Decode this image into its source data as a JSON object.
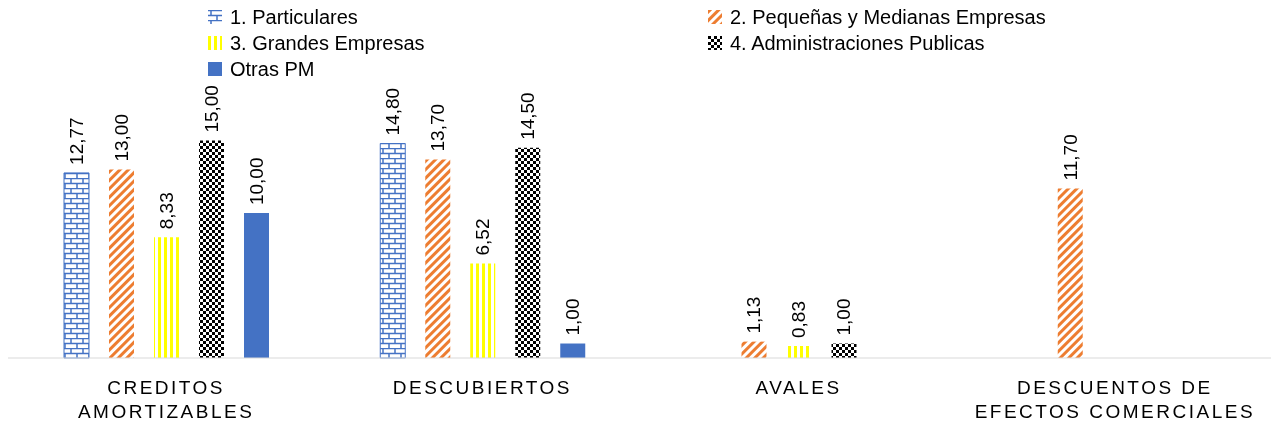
{
  "chart_data": {
    "type": "bar",
    "categories": [
      "CREDITOS AMORTIZABLES",
      "DESCUBIERTOS",
      "AVALES",
      "DESCUENTOS DE EFECTOS COMERCIALES"
    ],
    "series": [
      {
        "name": "1. Particulares",
        "color": "#4472c4",
        "values": [
          12.77,
          14.8,
          null,
          null
        ],
        "value_labels": [
          "12,77",
          "14,80",
          null,
          null
        ]
      },
      {
        "name": "2. Pequeñas y Medianas Empresas",
        "color": "#ed7d31",
        "values": [
          13.0,
          13.7,
          1.13,
          11.7
        ],
        "value_labels": [
          "13,00",
          "13,70",
          "1,13",
          "11,70"
        ]
      },
      {
        "name": "3. Grandes Empresas",
        "color": "#ffff00",
        "values": [
          8.33,
          6.52,
          0.83,
          null
        ],
        "value_labels": [
          "8,33",
          "6,52",
          "0,83",
          null
        ]
      },
      {
        "name": "4. Administraciones Publicas",
        "color": "#000000",
        "values": [
          15.0,
          14.5,
          1.0,
          null
        ],
        "value_labels": [
          "15,00",
          "14,50",
          "1,00",
          null
        ]
      },
      {
        "name": "Otras PM",
        "color": "#4472c4",
        "values": [
          10.0,
          1.0,
          null,
          null
        ],
        "value_labels": [
          "10,00",
          "1,00",
          null,
          null
        ]
      }
    ],
    "legend": "top"
  }
}
